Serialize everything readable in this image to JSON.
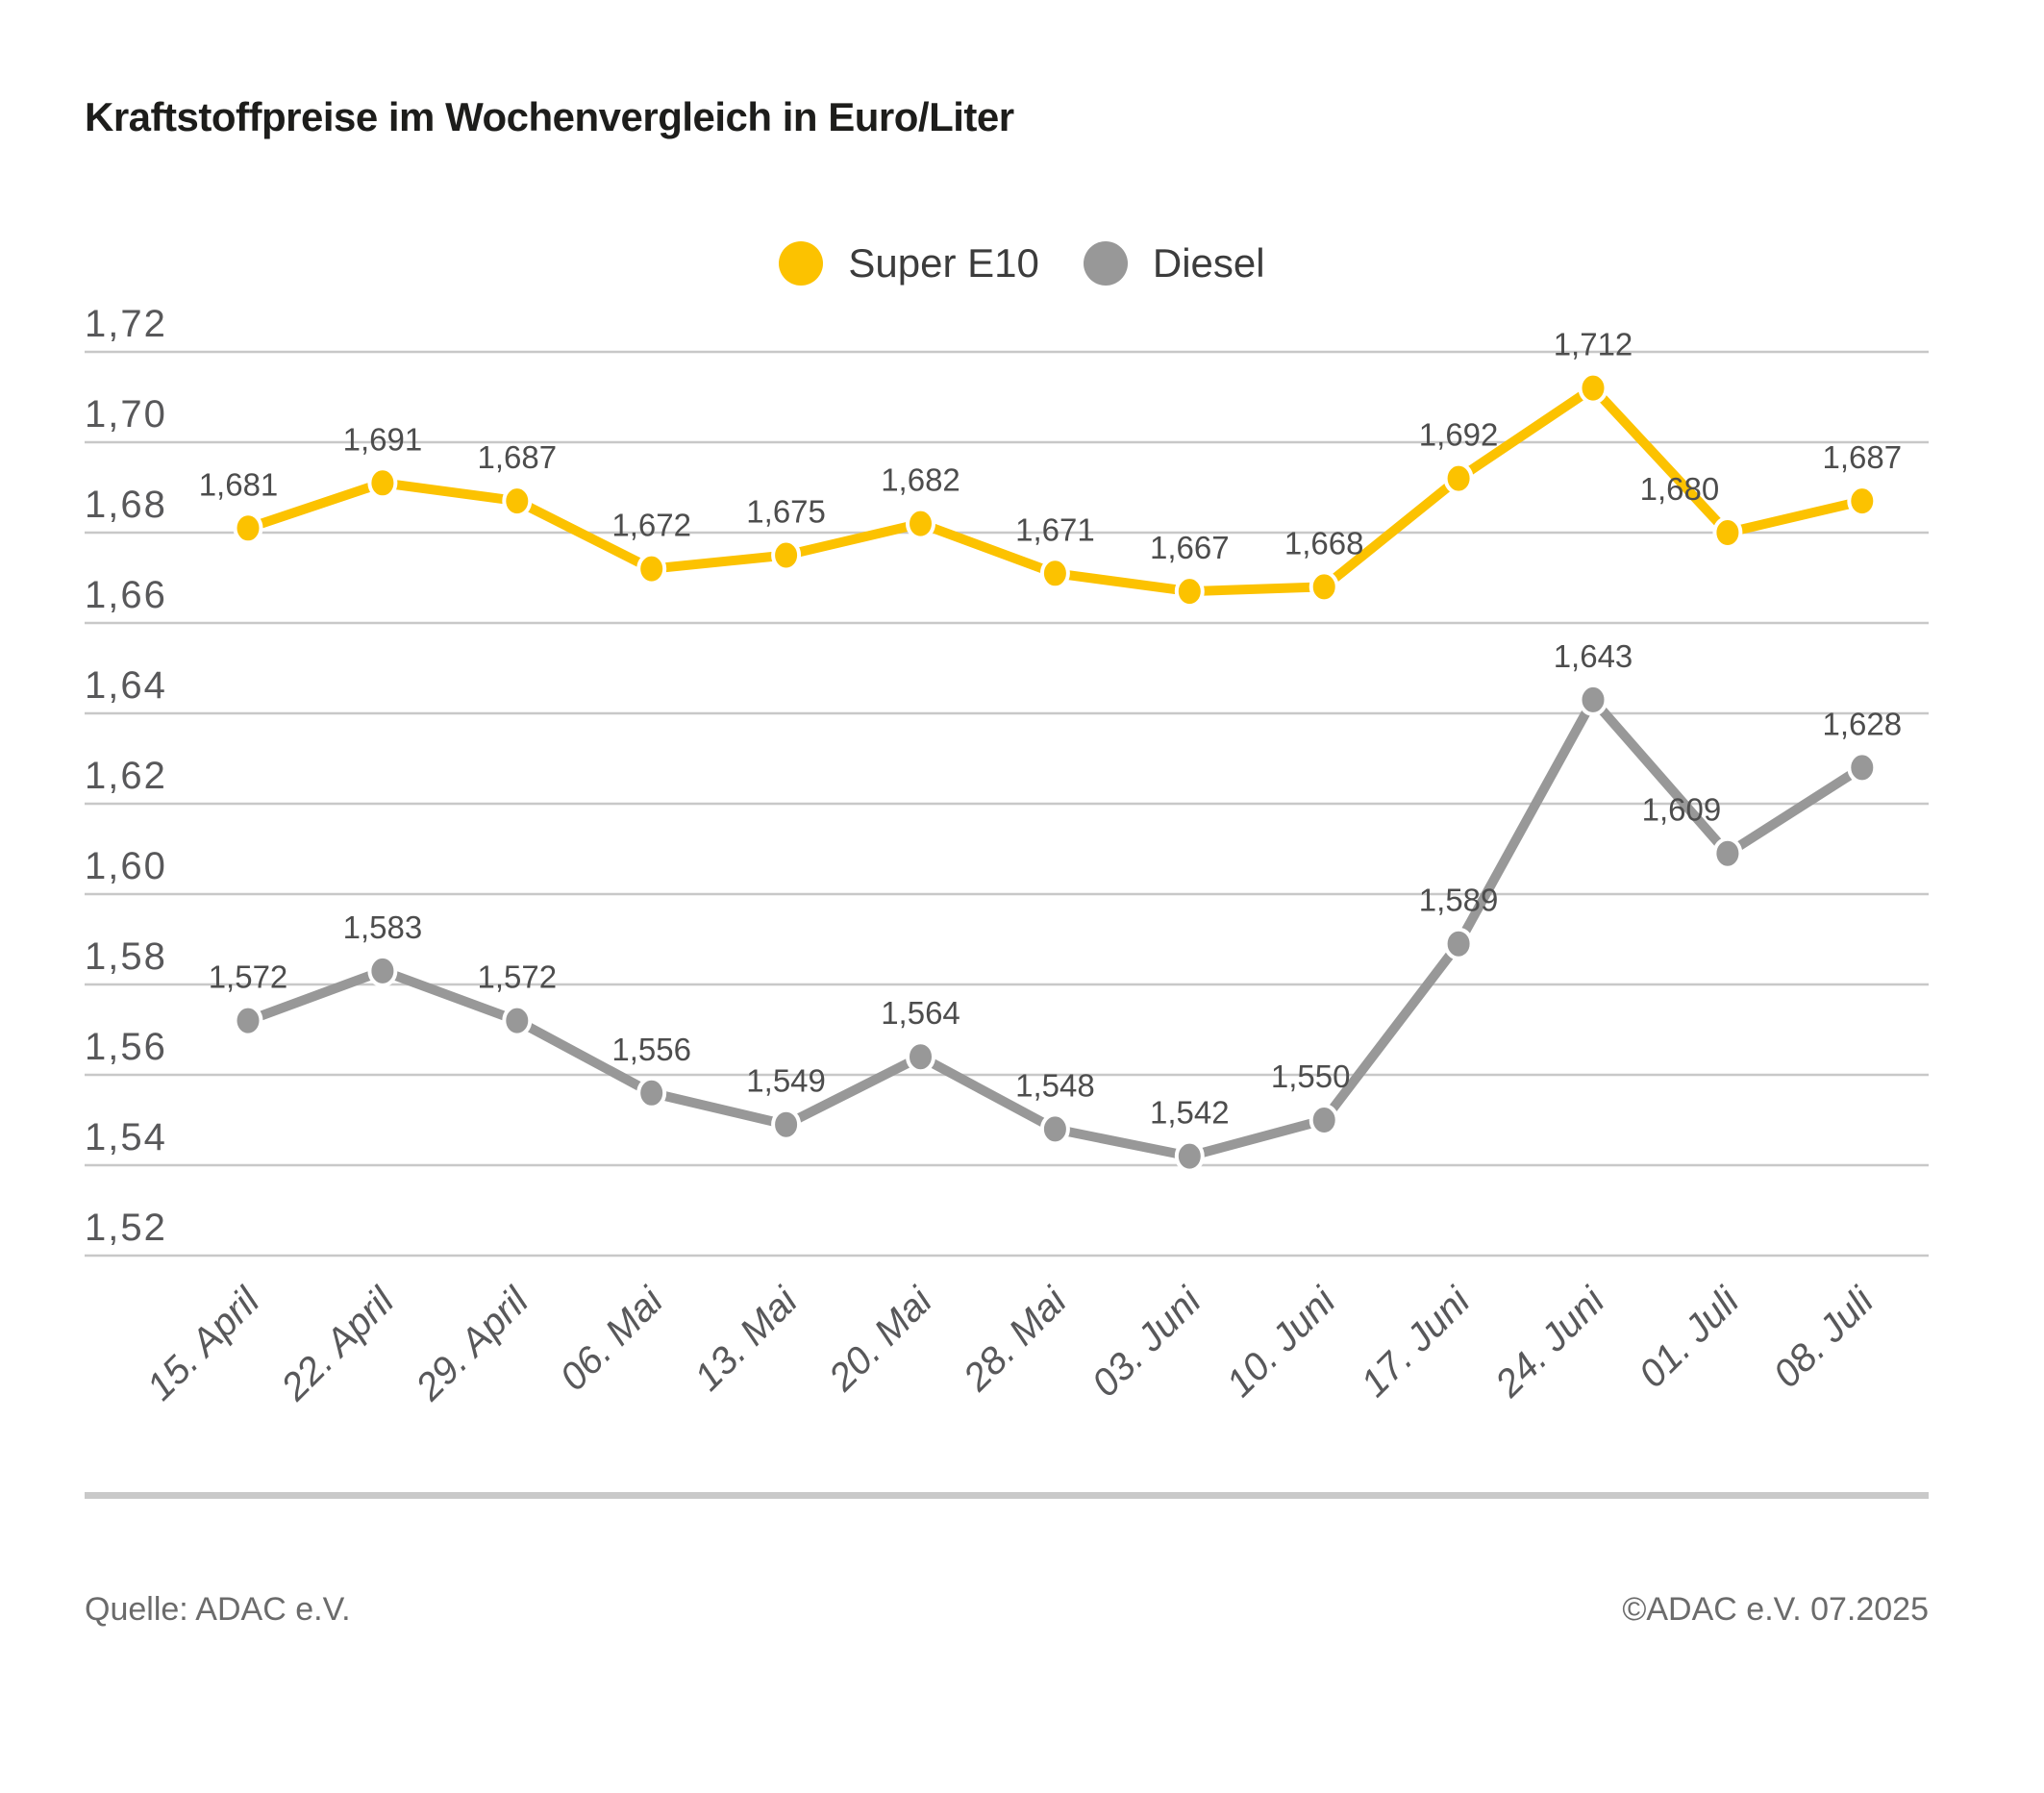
{
  "title": "Kraftstoffpreise im Wochenvergleich in Euro/Liter",
  "footer": {
    "source": "Quelle: ADAC e.V.",
    "copyright": "©ADAC e.V. 07.2025"
  },
  "chart_data": {
    "type": "line",
    "title": "Kraftstoffpreise im Wochenvergleich in Euro/Liter",
    "unit": "Euro/Liter",
    "categories": [
      "15. April",
      "22. April",
      "29. April",
      "06. Mai",
      "13. Mai",
      "20. Mai",
      "28. Mai",
      "03. Juni",
      "10. Juni",
      "17. Juni",
      "24. Juni",
      "01. Juli",
      "08. Juli"
    ],
    "series": [
      {
        "name": "Super E10",
        "color": "#FCC200",
        "values": [
          1.681,
          1.691,
          1.687,
          1.672,
          1.675,
          1.682,
          1.671,
          1.667,
          1.668,
          1.692,
          1.712,
          1.68,
          1.687
        ],
        "labels": [
          "1,681",
          "1,691",
          "1,687",
          "1,672",
          "1,675",
          "1,682",
          "1,671",
          "1,667",
          "1,668",
          "1,692",
          "1,712",
          "1,680",
          "1,687"
        ]
      },
      {
        "name": "Diesel",
        "color": "#989898",
        "values": [
          1.572,
          1.583,
          1.572,
          1.556,
          1.549,
          1.564,
          1.548,
          1.542,
          1.55,
          1.589,
          1.643,
          1.609,
          1.628
        ],
        "labels": [
          "1,572",
          "1,583",
          "1,572",
          "1,556",
          "1,549",
          "1,564",
          "1,548",
          "1,542",
          "1,550",
          "1,589",
          "1,643",
          "1,609",
          "1,628"
        ]
      }
    ],
    "ylim": [
      1.52,
      1.72
    ],
    "yticks": {
      "values": [
        1.72,
        1.7,
        1.68,
        1.66,
        1.64,
        1.62,
        1.6,
        1.58,
        1.56,
        1.54,
        1.52
      ],
      "labels": [
        "1,72",
        "1,70",
        "1,68",
        "1,66",
        "1,64",
        "1,62",
        "1,60",
        "1,58",
        "1,56",
        "1,54",
        "1,52"
      ]
    },
    "grid": true,
    "legend_position": "top-center",
    "grid_color": "#c8c8c8",
    "label_color": "#4d4d4d",
    "tick_color": "#58585a"
  }
}
